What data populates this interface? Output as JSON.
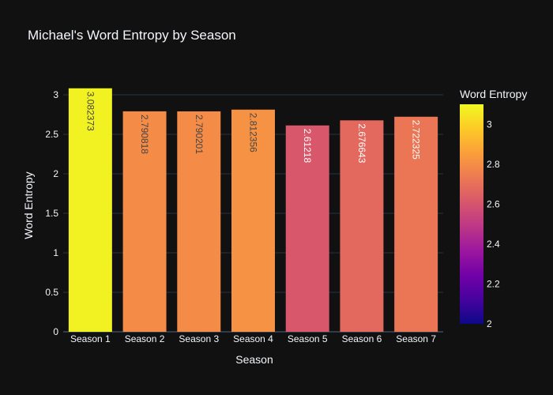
{
  "chart_data": {
    "type": "bar",
    "title": "Michael's Word Entropy by Season",
    "xlabel": "Season",
    "ylabel": "Word Entropy",
    "categories": [
      "Season 1",
      "Season 2",
      "Season 3",
      "Season 4",
      "Season 5",
      "Season 6",
      "Season 7"
    ],
    "values": [
      3.082373,
      2.790818,
      2.790201,
      2.812356,
      2.61218,
      2.676643,
      2.722325
    ],
    "value_labels": [
      "3.082373",
      "2.790818",
      "2.790201",
      "2.812356",
      "2.61218",
      "2.676643",
      "2.722325"
    ],
    "ylim": [
      0,
      3.2
    ],
    "yticks": [
      0,
      0.5,
      1,
      1.5,
      2,
      2.5,
      3
    ],
    "ytick_labels": [
      "0",
      "0.5",
      "1",
      "1.5",
      "2",
      "2.5",
      "3"
    ],
    "grid": true,
    "colorbar": {
      "title": "Word Entropy",
      "range": [
        2.0,
        3.1
      ],
      "ticks": [
        2,
        2.2,
        2.4,
        2.6,
        2.8,
        3
      ],
      "tick_labels": [
        "2",
        "2.2",
        "2.4",
        "2.6",
        "2.8",
        "3"
      ],
      "colorscale": [
        "#0d0887",
        "#46039f",
        "#7201a8",
        "#9c179e",
        "#bd3786",
        "#d8576b",
        "#ed7953",
        "#fb9f3a",
        "#fdca26",
        "#f0f921"
      ]
    }
  },
  "theme": {
    "background": "#111111",
    "text_color": "#f2f5fa",
    "grid_color": "#283442"
  }
}
